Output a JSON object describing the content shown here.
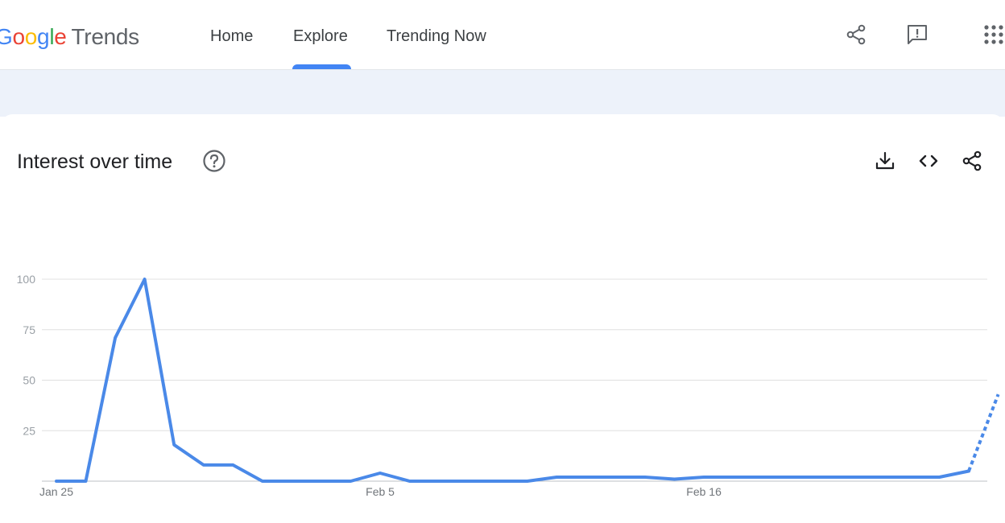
{
  "header": {
    "logo": {
      "g1": "G",
      "o1": "o",
      "o2": "o",
      "g2": "g",
      "l": "l",
      "e": "e",
      "product": "Trends"
    },
    "nav": [
      {
        "label": "Home"
      },
      {
        "label": "Explore",
        "active": true
      },
      {
        "label": "Trending Now"
      }
    ],
    "icons": [
      "share-icon",
      "feedback-icon",
      "apps-grid-icon"
    ]
  },
  "card": {
    "title": "Interest over time",
    "icons": [
      "help-icon",
      "download-icon",
      "embed-icon",
      "share-icon"
    ]
  },
  "colors": {
    "line": "#4a89e8",
    "grid": "#e0e0e0",
    "axis_label": "#9aa0a6",
    "tab_indicator": "#4285f4",
    "banner": "#edf2fa"
  },
  "chart_data": {
    "type": "line",
    "title": "Interest over time",
    "xlabel": "",
    "ylabel": "",
    "ylim": [
      0,
      100
    ],
    "yticks": [
      25,
      50,
      75,
      100
    ],
    "xtick_labels": [
      {
        "label": "Jan 25",
        "index": 0
      },
      {
        "label": "Feb 5",
        "index": 11
      },
      {
        "label": "Feb 16",
        "index": 22
      }
    ],
    "grid": true,
    "x": [
      "Jan 25",
      "Jan 26",
      "Jan 27",
      "Jan 28",
      "Jan 29",
      "Jan 30",
      "Jan 31",
      "Feb 1",
      "Feb 2",
      "Feb 3",
      "Feb 4",
      "Feb 5",
      "Feb 6",
      "Feb 7",
      "Feb 8",
      "Feb 9",
      "Feb 10",
      "Feb 11",
      "Feb 12",
      "Feb 13",
      "Feb 14",
      "Feb 15",
      "Feb 16",
      "Feb 17",
      "Feb 18",
      "Feb 19",
      "Feb 20",
      "Feb 21",
      "Feb 22",
      "Feb 23",
      "Feb 24",
      "Feb 25",
      "Feb 26"
    ],
    "series": [
      {
        "values": [
          0,
          0,
          71,
          100,
          18,
          8,
          8,
          0,
          0,
          0,
          0,
          4,
          0,
          0,
          0,
          0,
          0,
          2,
          2,
          2,
          2,
          1,
          2,
          2,
          2,
          2,
          2,
          2,
          2,
          2,
          2,
          5,
          43
        ],
        "partial_from_index": 31
      }
    ]
  }
}
